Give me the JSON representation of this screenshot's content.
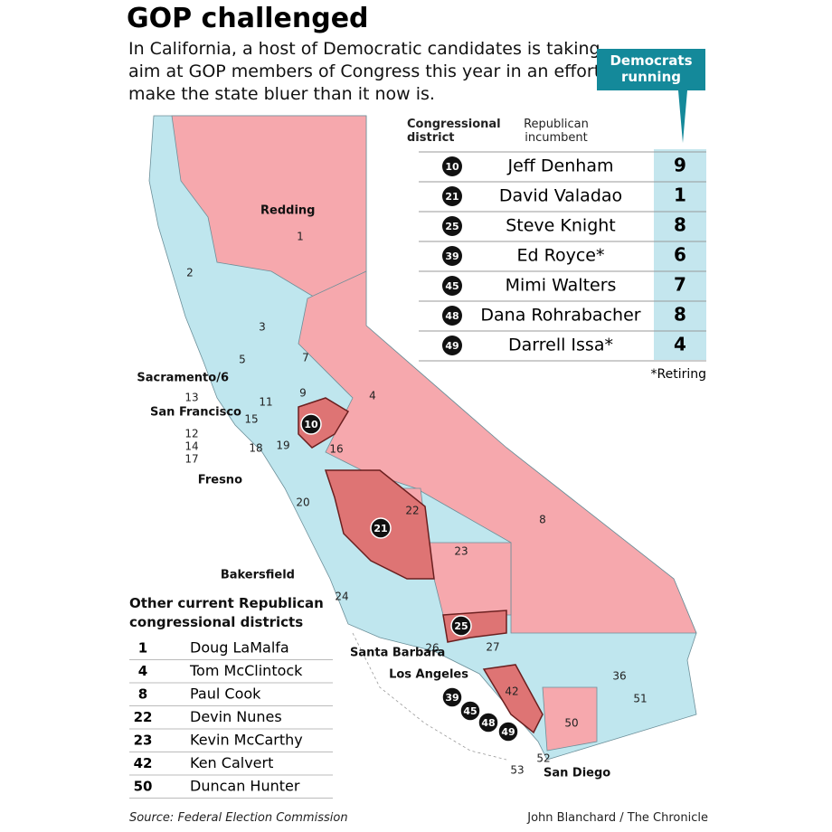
{
  "header": {
    "title": "GOP challenged",
    "intro": "In California, a host of Democratic candidates is taking aim at GOP members of Congress this year in an effort to make the state bluer than it now is."
  },
  "challenged_table": {
    "columns": [
      "Congressional district",
      "Republican incumbent",
      "Democrats running"
    ],
    "rows": [
      [
        "10",
        "Jeff Denham",
        9
      ],
      [
        "21",
        "David Valadao",
        1
      ],
      [
        "25",
        "Steve Knight",
        8
      ],
      [
        "39",
        "Ed Royce*",
        6
      ],
      [
        "45",
        "Mimi Walters",
        7
      ],
      [
        "48",
        "Dana Rohrabacher",
        8
      ],
      [
        "49",
        "Darrell Issa*",
        4
      ]
    ],
    "note": "*Retiring"
  },
  "other_table": {
    "title": "Other current Republican congressional districts",
    "rows": [
      [
        "1",
        "Doug LaMalfa"
      ],
      [
        "4",
        "Tom McClintock"
      ],
      [
        "8",
        "Paul Cook"
      ],
      [
        "22",
        "Devin Nunes"
      ],
      [
        "23",
        "Kevin McCarthy"
      ],
      [
        "42",
        "Ken Calvert"
      ],
      [
        "50",
        "Duncan Hunter"
      ]
    ]
  },
  "map": {
    "cities": [
      "Redding",
      "Sacramento/6",
      "San Francisco",
      "Fresno",
      "Bakersfield",
      "Santa Barbara",
      "Los Angeles",
      "San Diego"
    ],
    "district_labels": [
      "1",
      "2",
      "3",
      "4",
      "5",
      "7",
      "8",
      "9",
      "11",
      "13",
      "12",
      "14",
      "17",
      "15",
      "16",
      "18",
      "19",
      "20",
      "22",
      "23",
      "24",
      "26",
      "27",
      "36",
      "42",
      "50",
      "51",
      "52",
      "53"
    ]
  },
  "footer": {
    "source": "Source: Federal Election Commission",
    "credit": "John Blanchard / The Chronicle"
  }
}
